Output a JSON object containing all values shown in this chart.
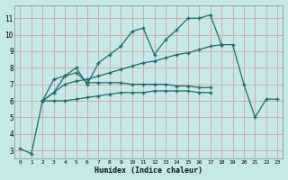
{
  "xlabel": "Humidex (Indice chaleur)",
  "bg_color": "#c5e8e8",
  "grid_color": "#dca0a0",
  "line_color": "#1a6e6e",
  "xlim": [
    -0.5,
    23.5
  ],
  "ylim": [
    2.5,
    11.8
  ],
  "xticks": [
    0,
    1,
    2,
    3,
    4,
    5,
    6,
    7,
    8,
    9,
    10,
    11,
    12,
    13,
    14,
    15,
    16,
    17,
    18,
    19,
    20,
    21,
    22,
    23
  ],
  "yticks": [
    3,
    4,
    5,
    6,
    7,
    8,
    9,
    10,
    11
  ],
  "line1_x": [
    0,
    1,
    2,
    3,
    4,
    5,
    6,
    7,
    8,
    9,
    10,
    11,
    12,
    13,
    14,
    15,
    16,
    17,
    18
  ],
  "line1_y": [
    3.1,
    2.8,
    6.0,
    7.3,
    7.5,
    8.0,
    7.0,
    8.3,
    8.8,
    9.3,
    10.2,
    10.4,
    8.8,
    9.7,
    10.3,
    11.0,
    11.0,
    11.2,
    9.4
  ],
  "line2_x": [
    2,
    3,
    4,
    5,
    6,
    7,
    8,
    9,
    10,
    11,
    12,
    13,
    14,
    15,
    16,
    17,
    18,
    19,
    20,
    21,
    22,
    23
  ],
  "line2_y": [
    6.0,
    6.5,
    7.0,
    7.2,
    7.3,
    7.5,
    7.7,
    7.9,
    8.1,
    8.3,
    8.4,
    8.6,
    8.8,
    8.9,
    9.1,
    9.3,
    9.4,
    9.4,
    7.0,
    5.0,
    6.1,
    6.1
  ],
  "line3_x": [
    2,
    3,
    4,
    5,
    6,
    7,
    8,
    9,
    10,
    11,
    12,
    13,
    14,
    15,
    16,
    17
  ],
  "line3_y": [
    6.0,
    6.5,
    7.5,
    7.7,
    7.1,
    7.1,
    7.1,
    7.1,
    7.0,
    7.0,
    7.0,
    7.0,
    6.9,
    6.9,
    6.8,
    6.8
  ],
  "line4_x": [
    2,
    3,
    4,
    5,
    6,
    7,
    8,
    9,
    10,
    11,
    12,
    13,
    14,
    15,
    16,
    17
  ],
  "line4_y": [
    6.0,
    6.0,
    6.0,
    6.1,
    6.2,
    6.3,
    6.4,
    6.5,
    6.5,
    6.5,
    6.6,
    6.6,
    6.6,
    6.6,
    6.5,
    6.5
  ],
  "marker": "+"
}
